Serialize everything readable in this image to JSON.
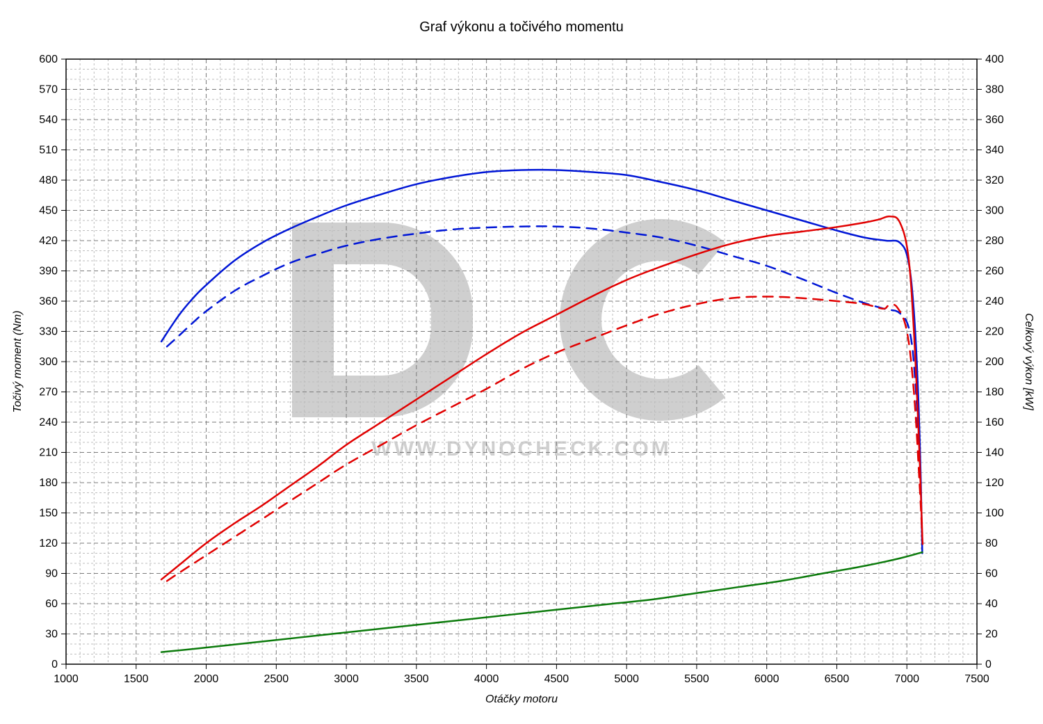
{
  "chart": {
    "type": "line",
    "title": "Graf výkonu a točivého momentu",
    "title_fontsize": 20,
    "background_color": "#ffffff",
    "plot_border_color": "#000000",
    "grid_color_major": "#7a7a7a",
    "grid_dash_major": "6,4",
    "grid_color_minor": "#bdbdbd",
    "grid_dash_minor": "3,3",
    "line_width_data": 2.5,
    "watermark": {
      "big_letters_color": "#cfcfcf",
      "url_text": "WWW.DYNOCHECK.COM",
      "url_color": "#cfcfcf",
      "url_fontsize": 30
    },
    "x_axis": {
      "label": "Otáčky motoru",
      "min": 1000,
      "max": 7500,
      "tick_step": 500,
      "minor_step": 100,
      "label_fontsize": 16,
      "tick_fontsize": 16
    },
    "y_left": {
      "label": "Točivý moment (Nm)",
      "min": 0,
      "max": 600,
      "tick_step": 30,
      "minor_step": 10,
      "label_fontsize": 16,
      "tick_fontsize": 16
    },
    "y_right": {
      "label": "Celkový výkon [kW]",
      "min": 0,
      "max": 400,
      "tick_step": 20,
      "minor_step": null,
      "label_fontsize": 16,
      "tick_fontsize": 16
    },
    "series": [
      {
        "name": "torque_solid",
        "axis": "left",
        "color": "#0016d6",
        "dash": null,
        "points": [
          [
            1680,
            320
          ],
          [
            1800,
            345
          ],
          [
            1900,
            362
          ],
          [
            2000,
            376
          ],
          [
            2200,
            400
          ],
          [
            2400,
            418
          ],
          [
            2600,
            432
          ],
          [
            2800,
            444
          ],
          [
            3000,
            455
          ],
          [
            3250,
            466
          ],
          [
            3500,
            476
          ],
          [
            3750,
            483
          ],
          [
            4000,
            488
          ],
          [
            4250,
            490
          ],
          [
            4500,
            490
          ],
          [
            4750,
            488
          ],
          [
            5000,
            485
          ],
          [
            5250,
            478
          ],
          [
            5500,
            470
          ],
          [
            5750,
            460
          ],
          [
            6000,
            450
          ],
          [
            6250,
            440
          ],
          [
            6500,
            430
          ],
          [
            6700,
            423
          ],
          [
            6850,
            420
          ],
          [
            6950,
            418
          ],
          [
            7010,
            400
          ],
          [
            7050,
            350
          ],
          [
            7080,
            270
          ],
          [
            7100,
            180
          ],
          [
            7110,
            110
          ]
        ]
      },
      {
        "name": "torque_dashed",
        "axis": "left",
        "color": "#0016d6",
        "dash": "14,10",
        "points": [
          [
            1720,
            315
          ],
          [
            1800,
            325
          ],
          [
            1900,
            338
          ],
          [
            2000,
            350
          ],
          [
            2200,
            370
          ],
          [
            2400,
            385
          ],
          [
            2600,
            398
          ],
          [
            2800,
            407
          ],
          [
            3000,
            415
          ],
          [
            3250,
            422
          ],
          [
            3500,
            427
          ],
          [
            3750,
            431
          ],
          [
            4000,
            433
          ],
          [
            4250,
            434
          ],
          [
            4500,
            434
          ],
          [
            4750,
            432
          ],
          [
            5000,
            428
          ],
          [
            5250,
            423
          ],
          [
            5500,
            415
          ],
          [
            5750,
            405
          ],
          [
            6000,
            395
          ],
          [
            6250,
            382
          ],
          [
            6500,
            368
          ],
          [
            6700,
            358
          ],
          [
            6850,
            352
          ],
          [
            6950,
            348
          ],
          [
            7020,
            330
          ],
          [
            7060,
            280
          ],
          [
            7090,
            200
          ],
          [
            7110,
            120
          ]
        ]
      },
      {
        "name": "power_solid",
        "axis": "right",
        "color": "#e10000",
        "dash": null,
        "points": [
          [
            1680,
            56
          ],
          [
            1800,
            65
          ],
          [
            2000,
            80
          ],
          [
            2200,
            93
          ],
          [
            2400,
            105
          ],
          [
            2600,
            118
          ],
          [
            2800,
            131
          ],
          [
            3000,
            145
          ],
          [
            3250,
            160
          ],
          [
            3500,
            175
          ],
          [
            3750,
            190
          ],
          [
            4000,
            205
          ],
          [
            4250,
            219
          ],
          [
            4500,
            231
          ],
          [
            4750,
            243
          ],
          [
            5000,
            254
          ],
          [
            5250,
            263
          ],
          [
            5500,
            271
          ],
          [
            5750,
            278
          ],
          [
            6000,
            283
          ],
          [
            6250,
            286
          ],
          [
            6500,
            289
          ],
          [
            6700,
            292
          ],
          [
            6800,
            294
          ],
          [
            6880,
            296
          ],
          [
            6950,
            292
          ],
          [
            7010,
            270
          ],
          [
            7050,
            220
          ],
          [
            7085,
            150
          ],
          [
            7110,
            85
          ]
        ]
      },
      {
        "name": "power_dashed",
        "axis": "right",
        "color": "#e10000",
        "dash": "14,10",
        "points": [
          [
            1720,
            55
          ],
          [
            1800,
            60
          ],
          [
            2000,
            72
          ],
          [
            2200,
            84
          ],
          [
            2400,
            96
          ],
          [
            2600,
            108
          ],
          [
            2800,
            120
          ],
          [
            3000,
            132
          ],
          [
            3250,
            145
          ],
          [
            3500,
            158
          ],
          [
            3750,
            170
          ],
          [
            4000,
            182
          ],
          [
            4250,
            195
          ],
          [
            4500,
            206
          ],
          [
            4750,
            215
          ],
          [
            5000,
            224
          ],
          [
            5250,
            232
          ],
          [
            5500,
            238
          ],
          [
            5750,
            242
          ],
          [
            6000,
            243
          ],
          [
            6250,
            242
          ],
          [
            6500,
            240
          ],
          [
            6700,
            238
          ],
          [
            6830,
            235
          ],
          [
            6870,
            237
          ],
          [
            6930,
            236
          ],
          [
            7000,
            220
          ],
          [
            7050,
            180
          ],
          [
            7090,
            120
          ],
          [
            7115,
            75
          ]
        ]
      },
      {
        "name": "loss_solid",
        "axis": "right",
        "color": "#0b7a0b",
        "dash": null,
        "points": [
          [
            1680,
            8
          ],
          [
            1900,
            10
          ],
          [
            2200,
            13
          ],
          [
            2500,
            16
          ],
          [
            2800,
            19
          ],
          [
            3100,
            22
          ],
          [
            3400,
            25
          ],
          [
            3700,
            28
          ],
          [
            4000,
            31
          ],
          [
            4300,
            34
          ],
          [
            4600,
            37
          ],
          [
            4900,
            40
          ],
          [
            5200,
            43
          ],
          [
            5500,
            47
          ],
          [
            5800,
            51
          ],
          [
            6100,
            55
          ],
          [
            6400,
            60
          ],
          [
            6700,
            65
          ],
          [
            6950,
            70
          ],
          [
            7110,
            74
          ]
        ]
      }
    ]
  }
}
